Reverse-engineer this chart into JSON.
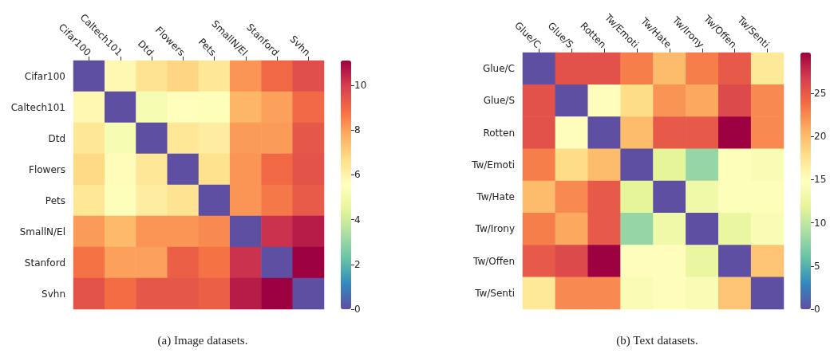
{
  "chart_data": [
    {
      "type": "heatmap",
      "title": "(a) Image datasets.",
      "categories": [
        "Cifar100",
        "Caltech101",
        "Dtd",
        "Flowers",
        "Pets",
        "SmallN/El",
        "Stanford",
        "Svhn"
      ],
      "y_categories": [
        "Cifar100",
        "Caltech101",
        "Dtd",
        "Flowers",
        "Pets",
        "SmallN/El",
        "Stanford",
        "Svhn"
      ],
      "cells": [
        [
          0,
          5.8,
          6.5,
          6.9,
          6.4,
          8.2,
          9.0,
          9.6
        ],
        [
          5.8,
          0,
          5.2,
          5.6,
          5.4,
          7.6,
          8.0,
          9.0
        ],
        [
          6.4,
          5.2,
          0,
          6.4,
          6.2,
          8.1,
          8.1,
          9.4
        ],
        [
          6.8,
          5.7,
          6.4,
          0,
          6.6,
          8.2,
          9.0,
          9.5
        ],
        [
          6.4,
          5.4,
          6.2,
          6.5,
          0,
          8.2,
          8.7,
          9.3
        ],
        [
          8.1,
          7.5,
          8.2,
          8.2,
          8.4,
          0,
          10.2,
          10.6
        ],
        [
          8.8,
          8.0,
          8.0,
          9.2,
          8.8,
          10.2,
          0,
          11.1
        ],
        [
          9.5,
          8.9,
          9.4,
          9.4,
          9.2,
          10.6,
          11.1,
          0
        ]
      ],
      "clim": [
        0,
        11.1
      ],
      "cticks": [
        0,
        2,
        4,
        6,
        8,
        10
      ]
    },
    {
      "type": "heatmap",
      "title": "(b) Text datasets.",
      "categories": [
        "Glue/C",
        "Glue/S",
        "Rotten",
        "Tw/Emoti",
        "Tw/Hate",
        "Tw/Irony",
        "Tw/Offen",
        "Tw/Senti"
      ],
      "y_categories": [
        "Glue/C",
        "Glue/S",
        "Rotten",
        "Tw/Emoti",
        "Tw/Hate",
        "Tw/Irony",
        "Tw/Offen",
        "Tw/Senti"
      ],
      "cells": [
        [
          0,
          25.5,
          25.5,
          23,
          20,
          23,
          25,
          17
        ],
        [
          25.5,
          0,
          15,
          18,
          22,
          21,
          26,
          22.5
        ],
        [
          25.5,
          15,
          0,
          20,
          25,
          25,
          29.7,
          22.5
        ],
        [
          23,
          18,
          20,
          0,
          12,
          8,
          14.5,
          14
        ],
        [
          20,
          22.5,
          25,
          12,
          0,
          13,
          14.5,
          14.5
        ],
        [
          23,
          21,
          25,
          8,
          13,
          0,
          12.5,
          14
        ],
        [
          25,
          26,
          29.7,
          15,
          15,
          12.5,
          0,
          19.5
        ],
        [
          17,
          22.5,
          22.5,
          14,
          15,
          14,
          19.5,
          0
        ]
      ],
      "clim": [
        0,
        29.7
      ],
      "cticks": [
        0,
        5,
        10,
        15,
        20,
        25
      ]
    }
  ]
}
